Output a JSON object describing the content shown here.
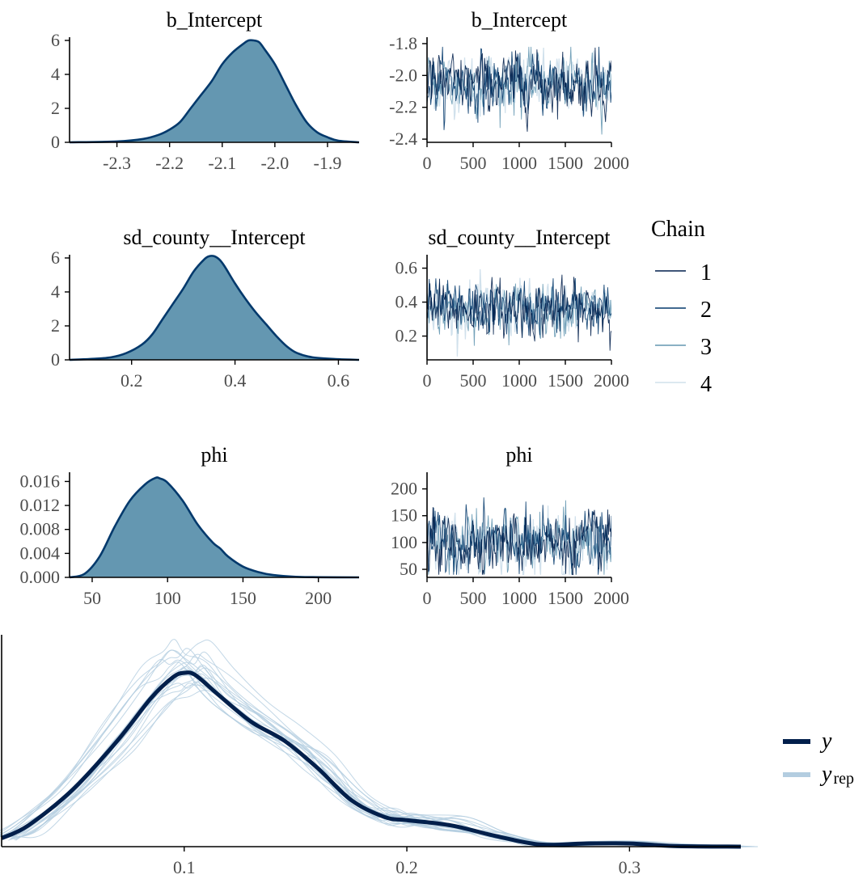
{
  "chart_data": [
    {
      "type": "area",
      "title": "b_Intercept",
      "xlim": [
        -2.39,
        -1.84
      ],
      "ylim": [
        0,
        6
      ],
      "xticks": [
        -2.3,
        -2.2,
        -2.1,
        -2.0,
        -1.9
      ],
      "xtick_labels": [
        "-2.3",
        "-2.2",
        "-2.1",
        "-2.0",
        "-1.9"
      ],
      "yticks": [
        0,
        2,
        4,
        6
      ],
      "ytick_labels": [
        "0",
        "2",
        "4",
        "6"
      ],
      "x": [
        -2.39,
        -2.3,
        -2.25,
        -2.22,
        -2.2,
        -2.18,
        -2.16,
        -2.14,
        -2.12,
        -2.1,
        -2.08,
        -2.06,
        -2.05,
        -2.04,
        -2.03,
        -2.02,
        -2.0,
        -1.98,
        -1.96,
        -1.94,
        -1.92,
        -1.9,
        -1.88,
        -1.84
      ],
      "y": [
        0.0,
        0.05,
        0.2,
        0.45,
        0.75,
        1.2,
        2.0,
        2.8,
        3.6,
        4.6,
        5.3,
        5.8,
        6.0,
        6.0,
        5.9,
        5.5,
        4.6,
        3.4,
        2.2,
        1.2,
        0.6,
        0.3,
        0.1,
        0.0
      ],
      "fill": "#6497b1",
      "stroke": "#03396c"
    },
    {
      "type": "line",
      "title": "b_Intercept",
      "xlim": [
        0,
        2000
      ],
      "ylim": [
        -2.42,
        -1.78
      ],
      "xticks": [
        0,
        500,
        1000,
        1500,
        2000
      ],
      "xtick_labels": [
        "0",
        "500",
        "1000",
        "1500",
        "2000"
      ],
      "yticks": [
        -2.4,
        -2.2,
        -2.0,
        -1.8
      ],
      "ytick_labels": [
        "-2.4",
        "-2.2",
        "-2.0",
        "-1.8"
      ],
      "trace": {
        "center": -2.05,
        "spread": 0.09,
        "min": -2.38,
        "max": -1.82,
        "iterations": 2000
      }
    },
    {
      "type": "area",
      "title": "sd_county__Intercept",
      "xlim": [
        0.08,
        0.64
      ],
      "ylim": [
        0,
        6
      ],
      "xticks": [
        0.2,
        0.4,
        0.6
      ],
      "xtick_labels": [
        "0.2",
        "0.4",
        "0.6"
      ],
      "yticks": [
        0,
        2,
        4,
        6
      ],
      "ytick_labels": [
        "0",
        "2",
        "4",
        "6"
      ],
      "x": [
        0.08,
        0.12,
        0.16,
        0.19,
        0.22,
        0.24,
        0.26,
        0.28,
        0.3,
        0.32,
        0.34,
        0.35,
        0.36,
        0.37,
        0.38,
        0.4,
        0.42,
        0.44,
        0.46,
        0.48,
        0.5,
        0.52,
        0.55,
        0.6,
        0.64
      ],
      "y": [
        0.0,
        0.05,
        0.15,
        0.4,
        0.9,
        1.5,
        2.4,
        3.3,
        4.2,
        5.2,
        5.9,
        6.1,
        6.1,
        5.9,
        5.5,
        4.5,
        3.6,
        2.8,
        2.1,
        1.4,
        0.8,
        0.4,
        0.15,
        0.04,
        0.0
      ],
      "fill": "#6497b1",
      "stroke": "#03396c"
    },
    {
      "type": "line",
      "title": "sd_county__Intercept",
      "xlim": [
        0,
        2000
      ],
      "ylim": [
        0.06,
        0.66
      ],
      "xticks": [
        0,
        500,
        1000,
        1500,
        2000
      ],
      "xtick_labels": [
        "0",
        "500",
        "1000",
        "1500",
        "2000"
      ],
      "yticks": [
        0.2,
        0.4,
        0.6
      ],
      "ytick_labels": [
        "0.2",
        "0.4",
        "0.6"
      ],
      "trace": {
        "center": 0.36,
        "spread": 0.075,
        "min": 0.08,
        "max": 0.64,
        "iterations": 2000
      }
    },
    {
      "type": "area",
      "title": "phi",
      "xlim": [
        35,
        227
      ],
      "ylim": [
        0,
        0.017
      ],
      "xticks": [
        50,
        100,
        150,
        200
      ],
      "xtick_labels": [
        "50",
        "100",
        "150",
        "200"
      ],
      "yticks": [
        0,
        0.004,
        0.008,
        0.012,
        0.016
      ],
      "ytick_labels": [
        "0.000",
        "0.004",
        "0.008",
        "0.012",
        "0.016"
      ],
      "x": [
        35,
        45,
        55,
        65,
        75,
        85,
        92,
        95,
        100,
        110,
        120,
        130,
        135,
        140,
        150,
        160,
        170,
        185,
        200,
        227
      ],
      "y": [
        0.0,
        0.0006,
        0.0035,
        0.0085,
        0.0128,
        0.0155,
        0.0166,
        0.0165,
        0.0158,
        0.0128,
        0.0088,
        0.0058,
        0.0048,
        0.0035,
        0.0018,
        0.0009,
        0.0004,
        0.0001,
        3e-05,
        0.0
      ],
      "fill": "#6497b1",
      "stroke": "#03396c"
    },
    {
      "type": "line",
      "title": "phi",
      "xlim": [
        0,
        2000
      ],
      "ylim": [
        35,
        225
      ],
      "xticks": [
        0,
        500,
        1000,
        1500,
        2000
      ],
      "xtick_labels": [
        "0",
        "500",
        "1000",
        "1500",
        "2000"
      ],
      "yticks": [
        50,
        100,
        150,
        200
      ],
      "ytick_labels": [
        "50",
        "100",
        "150",
        "200"
      ],
      "trace": {
        "center": 100,
        "spread": 27,
        "min": 40,
        "max": 220,
        "iterations": 2000
      }
    },
    {
      "type": "line",
      "title": "",
      "xlim": [
        0.018,
        0.35
      ],
      "ylim": [
        0,
        1
      ],
      "xticks": [
        0.1,
        0.2,
        0.3
      ],
      "xtick_labels": [
        "0.1",
        "0.2",
        "0.3"
      ],
      "y_obs": {
        "x": [
          0.018,
          0.03,
          0.05,
          0.07,
          0.085,
          0.095,
          0.1,
          0.105,
          0.115,
          0.13,
          0.145,
          0.16,
          0.175,
          0.19,
          0.2,
          0.22,
          0.24,
          0.26,
          0.28,
          0.3,
          0.32,
          0.35
        ],
        "y": [
          0.04,
          0.1,
          0.27,
          0.5,
          0.7,
          0.8,
          0.82,
          0.81,
          0.72,
          0.59,
          0.5,
          0.37,
          0.22,
          0.14,
          0.125,
          0.1,
          0.05,
          0.01,
          0.015,
          0.015,
          0.003,
          0.0
        ]
      },
      "y_rep_count": 20
    }
  ],
  "legend": {
    "title": "Chain",
    "chains": [
      "1",
      "2",
      "3",
      "4"
    ],
    "chain_colors": [
      "#011f4b",
      "#03396c",
      "#6497b1",
      "#d1e1ec"
    ],
    "ppc_items": [
      {
        "main": "y",
        "sub": ""
      },
      {
        "main": "y",
        "sub": "rep"
      }
    ],
    "ppc_colors": [
      "#011f4b",
      "#b3cde0"
    ]
  },
  "colors": {
    "dens_fill": "#6497b1",
    "dens_line": "#03396c",
    "chain1": "#011f4b",
    "chain2": "#03396c",
    "chain3": "#6497b1",
    "chain4": "#d1e1ec",
    "y_obs": "#011f4b",
    "y_rep": "#b3cde0"
  }
}
